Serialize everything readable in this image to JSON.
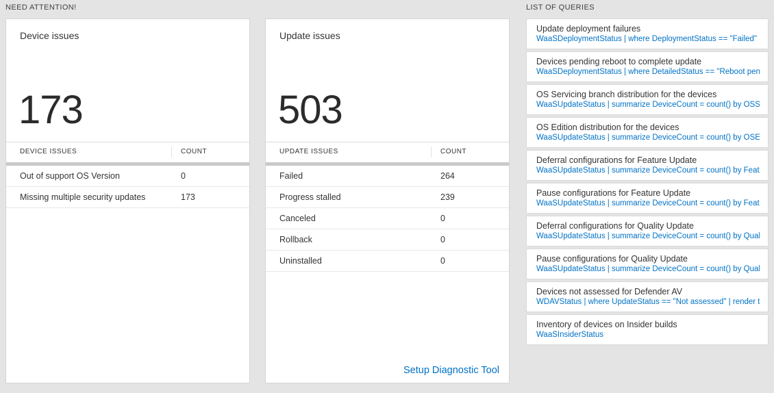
{
  "sections": {
    "need_attention": "NEED ATTENTION!",
    "queries": "LIST OF QUERIES"
  },
  "colors": {
    "background": "#e4e4e4",
    "card_border": "#d4d4d4",
    "link_blue": "#0072c6",
    "text_dark": "#333333",
    "grid_bar": "#c9c9c9"
  },
  "device_card": {
    "title": "Device issues",
    "count": "173",
    "table": {
      "col1": "DEVICE ISSUES",
      "col2": "COUNT",
      "rows": [
        {
          "label": "Out of support OS Version",
          "value": "0"
        },
        {
          "label": "Missing multiple security updates",
          "value": "173"
        }
      ]
    }
  },
  "update_card": {
    "title": "Update issues",
    "count": "503",
    "table": {
      "col1": "UPDATE ISSUES",
      "col2": "COUNT",
      "rows": [
        {
          "label": "Failed",
          "value": "264"
        },
        {
          "label": "Progress stalled",
          "value": "239"
        },
        {
          "label": "Canceled",
          "value": "0"
        },
        {
          "label": "Rollback",
          "value": "0"
        },
        {
          "label": "Uninstalled",
          "value": "0"
        }
      ]
    },
    "link": "Setup Diagnostic Tool"
  },
  "queries_list": [
    {
      "title": "Update deployment failures",
      "query": "WaaSDeploymentStatus | where DeploymentStatus == \"Failed\" |..."
    },
    {
      "title": "Devices pending reboot to complete update",
      "query": "WaaSDeploymentStatus | where DetailedStatus == \"Reboot pend..."
    },
    {
      "title": "OS Servicing branch distribution for the devices",
      "query": "WaaSUpdateStatus | summarize DeviceCount = count() by OSSer..."
    },
    {
      "title": "OS Edition distribution for the devices",
      "query": "WaaSUpdateStatus | summarize DeviceCount = count() by OSEdit..."
    },
    {
      "title": "Deferral configurations for Feature Update",
      "query": "WaaSUpdateStatus | summarize DeviceCount = count() by Featur..."
    },
    {
      "title": "Pause configurations for Feature Update",
      "query": "WaaSUpdateStatus | summarize DeviceCount = count() by Featur..."
    },
    {
      "title": "Deferral configurations for Quality Update",
      "query": "WaaSUpdateStatus | summarize DeviceCount = count() by Qualit..."
    },
    {
      "title": "Pause configurations for Quality Update",
      "query": "WaaSUpdateStatus | summarize DeviceCount = count() by Qualit..."
    },
    {
      "title": "Devices not assessed for Defender AV",
      "query": "WDAVStatus | where UpdateStatus == \"Not assessed\" | render ta..."
    },
    {
      "title": "Inventory of devices on Insider builds",
      "query": "WaaSInsiderStatus"
    }
  ]
}
